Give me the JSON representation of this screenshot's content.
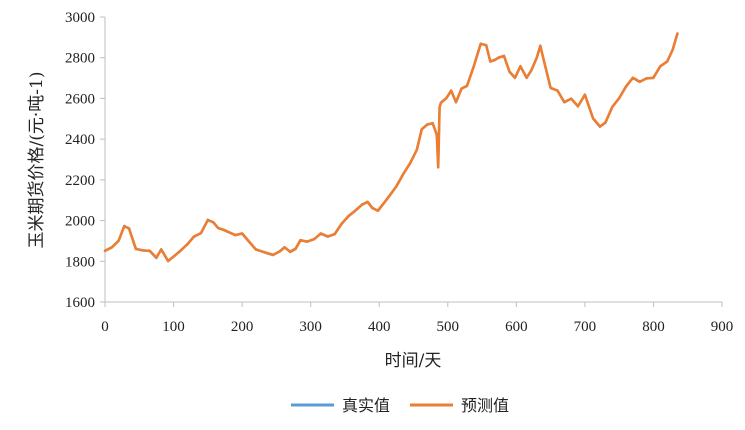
{
  "chart_data": {
    "type": "line",
    "xlabel": "时间/天",
    "ylabel": "玉米期货价格/(元·吨-1)",
    "xlim": [
      0,
      900
    ],
    "ylim": [
      1600,
      3000
    ],
    "xticks": [
      "0",
      "100",
      "200",
      "300",
      "400",
      "500",
      "600",
      "700",
      "800",
      "900"
    ],
    "yticks": [
      "1600",
      "1800",
      "2000",
      "2200",
      "2400",
      "2600",
      "2800",
      "3000"
    ],
    "grid": false,
    "legend_position": "bottom",
    "colors": {
      "actual": "#5B9BD5",
      "predicted": "#ED7D31"
    },
    "series": [
      {
        "name": "真实值",
        "color": "#5B9BD5",
        "x": [
          0,
          10,
          20,
          28,
          35,
          45,
          55,
          65,
          75,
          82,
          92,
          100,
          110,
          120,
          130,
          140,
          150,
          158,
          165,
          175,
          190,
          200,
          210,
          220,
          235,
          245,
          255,
          262,
          270,
          278,
          285,
          295,
          305,
          315,
          325,
          335,
          345,
          355,
          365,
          375,
          383,
          390,
          398,
          405,
          415,
          425,
          435,
          445,
          455,
          462,
          470,
          478,
          484,
          486,
          488,
          490,
          498,
          505,
          512,
          520,
          528,
          538,
          548,
          556,
          562,
          568,
          575,
          582,
          590,
          598,
          606,
          615,
          622,
          630,
          635,
          642,
          650,
          660,
          670,
          680,
          690,
          700,
          712,
          722,
          730,
          740,
          750,
          760,
          770,
          780,
          790,
          800,
          810,
          820,
          828,
          835
        ],
        "y": [
          1850,
          1870,
          1900,
          1975,
          1960,
          1860,
          1855,
          1850,
          1815,
          1860,
          1800,
          1825,
          1850,
          1885,
          1920,
          1940,
          2005,
          1990,
          1965,
          1950,
          1930,
          1935,
          1895,
          1860,
          1840,
          1830,
          1850,
          1870,
          1845,
          1860,
          1905,
          1895,
          1910,
          1935,
          1920,
          1935,
          1985,
          2020,
          2050,
          2080,
          2090,
          2060,
          2050,
          2080,
          2120,
          2170,
          2230,
          2280,
          2350,
          2450,
          2470,
          2480,
          2420,
          2260,
          2560,
          2580,
          2600,
          2640,
          2580,
          2650,
          2660,
          2760,
          2870,
          2860,
          2780,
          2790,
          2800,
          2810,
          2730,
          2700,
          2760,
          2700,
          2740,
          2800,
          2860,
          2760,
          2650,
          2640,
          2580,
          2600,
          2560,
          2620,
          2500,
          2460,
          2480,
          2560,
          2600,
          2660,
          2700,
          2680,
          2700,
          2700,
          2760,
          2780,
          2840,
          2920
        ]
      },
      {
        "name": "预测值",
        "color": "#ED7D31",
        "x": [
          0,
          10,
          20,
          28,
          35,
          45,
          55,
          65,
          75,
          82,
          92,
          100,
          110,
          120,
          130,
          140,
          150,
          158,
          165,
          175,
          190,
          200,
          210,
          220,
          235,
          245,
          255,
          262,
          270,
          278,
          285,
          295,
          305,
          315,
          325,
          335,
          345,
          355,
          365,
          375,
          383,
          390,
          398,
          405,
          415,
          425,
          435,
          445,
          455,
          462,
          470,
          478,
          484,
          486,
          488,
          490,
          498,
          505,
          512,
          520,
          528,
          538,
          548,
          556,
          562,
          568,
          575,
          582,
          590,
          598,
          606,
          615,
          622,
          630,
          635,
          642,
          650,
          660,
          670,
          680,
          690,
          700,
          712,
          722,
          730,
          740,
          750,
          760,
          770,
          780,
          790,
          800,
          810,
          820,
          828,
          835
        ],
        "y": [
          1852,
          1868,
          1902,
          1972,
          1962,
          1862,
          1853,
          1852,
          1818,
          1858,
          1802,
          1823,
          1852,
          1883,
          1922,
          1938,
          2002,
          1992,
          1963,
          1952,
          1928,
          1937,
          1897,
          1858,
          1842,
          1832,
          1848,
          1868,
          1847,
          1862,
          1903,
          1897,
          1908,
          1937,
          1922,
          1933,
          1983,
          2022,
          2048,
          2078,
          2092,
          2062,
          2048,
          2078,
          2122,
          2168,
          2228,
          2282,
          2348,
          2448,
          2472,
          2478,
          2422,
          2262,
          2558,
          2578,
          2602,
          2638,
          2582,
          2648,
          2662,
          2758,
          2868,
          2862,
          2782,
          2788,
          2802,
          2808,
          2732,
          2702,
          2758,
          2702,
          2738,
          2802,
          2858,
          2762,
          2652,
          2638,
          2582,
          2598,
          2562,
          2618,
          2502,
          2462,
          2482,
          2558,
          2602,
          2658,
          2702,
          2682,
          2698,
          2702,
          2758,
          2782,
          2838,
          2918
        ]
      }
    ]
  }
}
